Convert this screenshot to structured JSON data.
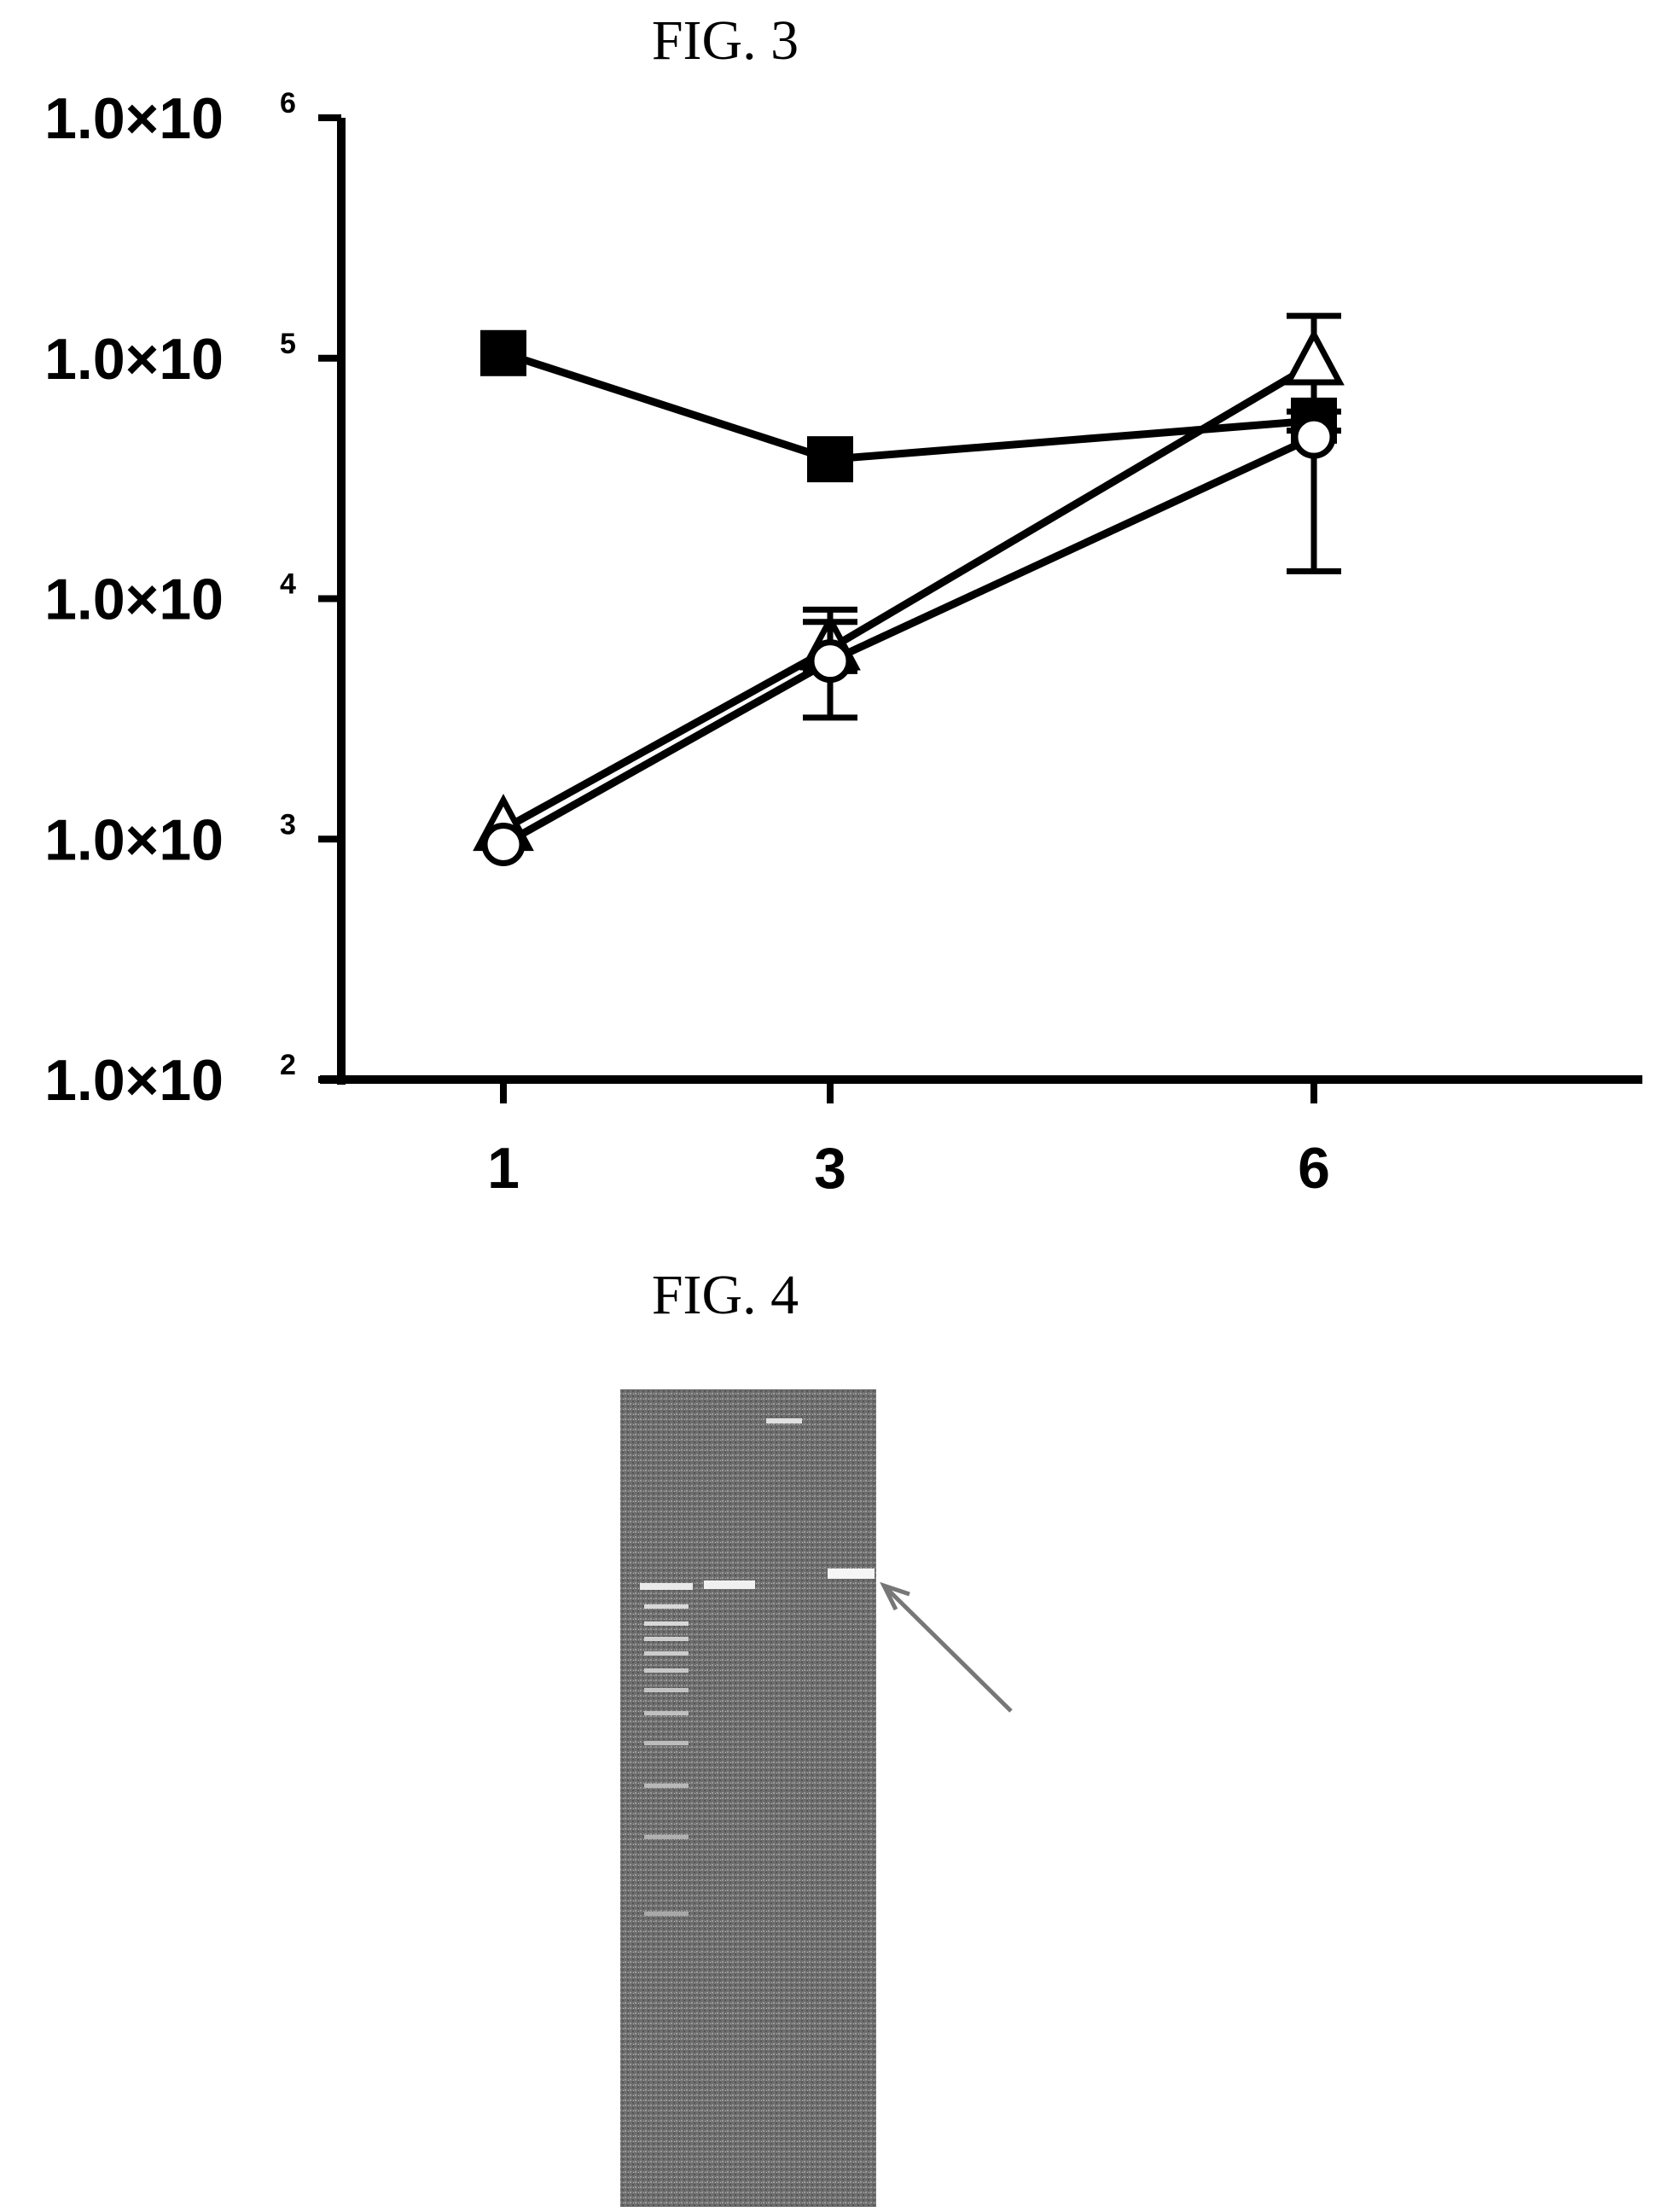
{
  "fig3": {
    "title": "FIG. 3",
    "chart_data": {
      "type": "line",
      "title": "",
      "xlabel": "",
      "ylabel": "",
      "y_scale": "log",
      "ylim": [
        100,
        1000000
      ],
      "x": [
        1,
        3,
        6
      ],
      "x_ticks": [
        "1",
        "3",
        "6"
      ],
      "y_ticks": [
        {
          "value": 100,
          "mantissa": "1.0×10",
          "exponent": "2"
        },
        {
          "value": 1000,
          "mantissa": "1.0×10",
          "exponent": "3"
        },
        {
          "value": 10000,
          "mantissa": "1.0×10",
          "exponent": "4"
        },
        {
          "value": 100000,
          "mantissa": "1.0×10",
          "exponent": "5"
        },
        {
          "value": 1000000,
          "mantissa": "1.0×10",
          "exponent": "6"
        }
      ],
      "grid": false,
      "legend": "none",
      "series": [
        {
          "marker": "square-filled",
          "values": [
            105000,
            38000,
            55000
          ],
          "error": [
            null,
            null,
            null
          ]
        },
        {
          "marker": "triangle-open",
          "values": [
            1100,
            6200,
            95000
          ],
          "error": [
            null,
            [
              5000,
              8000
            ],
            [
              60000,
              150000
            ]
          ]
        },
        {
          "marker": "circle-open",
          "values": [
            950,
            5500,
            47000
          ],
          "error": [
            null,
            [
              3200,
              9000
            ],
            [
              13000,
              50000
            ]
          ]
        }
      ]
    }
  },
  "fig4": {
    "title": "FIG. 4",
    "gel_lanes": 4,
    "arrow": "pointing-to-band"
  }
}
